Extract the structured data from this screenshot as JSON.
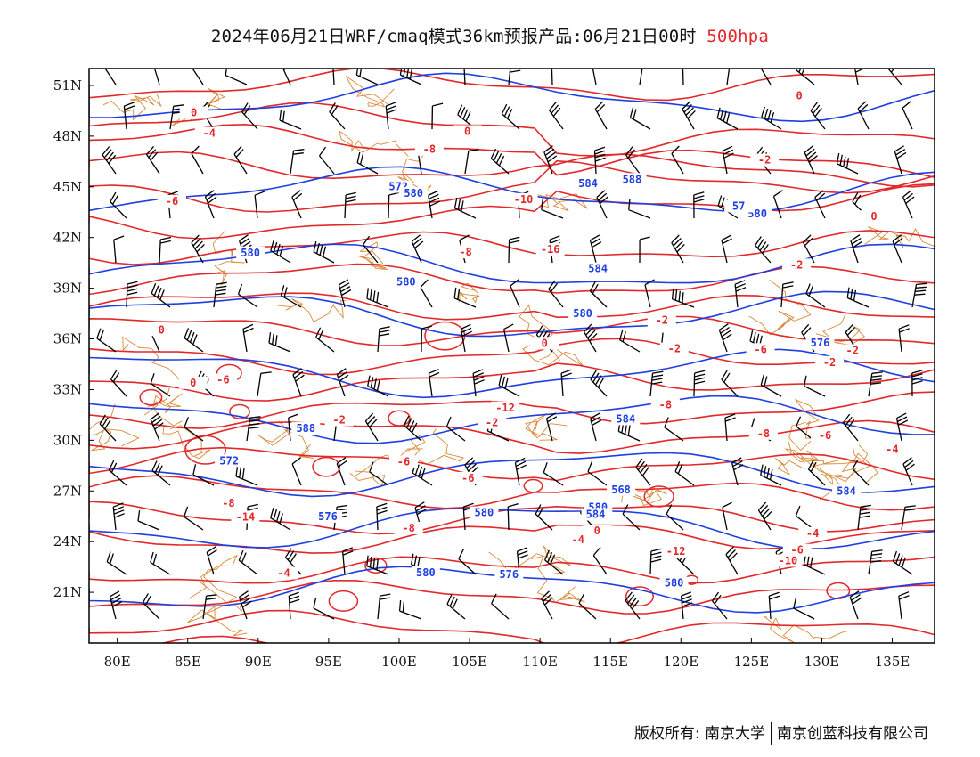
{
  "header": {
    "title": "2024年06月21日WRF/cmaq模式36km预报产品:06月21日00时",
    "level": "500hpa",
    "level_color": "#e2282b"
  },
  "footer": {
    "copyright_label": "版权所有:",
    "org1": "南京大学",
    "org2": "南京创蓝科技有限公司"
  },
  "map": {
    "lon_range": [
      78,
      138
    ],
    "lat_range": [
      18,
      52
    ],
    "x_ticks": [
      "80E",
      "85E",
      "90E",
      "95E",
      "100E",
      "105E",
      "110E",
      "115E",
      "120E",
      "125E",
      "130E",
      "135E"
    ],
    "y_ticks": [
      "51N",
      "48N",
      "45N",
      "42N",
      "39N",
      "36N",
      "33N",
      "30N",
      "27N",
      "24N",
      "21N"
    ],
    "colors": {
      "geopotential": "#1f3fe0",
      "temperature": "#e2282b",
      "borders": "#d98a3a",
      "wind": "#000000"
    },
    "geopotential_labels": [
      "584",
      "576",
      "580",
      "580",
      "572",
      "576",
      "576",
      "580",
      "580",
      "580",
      "580",
      "580",
      "584",
      "580",
      "580",
      "584",
      "584",
      "584",
      "588",
      "588",
      "572",
      "568",
      "57"
    ],
    "temperature_labels": [
      "-16",
      "-14",
      "-12",
      "-12",
      "-10",
      "-8",
      "-8",
      "-8",
      "-8",
      "-8",
      "-6",
      "-6",
      "-6",
      "-6",
      "-6",
      "-6",
      "-6",
      "-4",
      "-4",
      "-4",
      "-4",
      "-4",
      "-2",
      "-2",
      "-2",
      "-2",
      "-2",
      "-2",
      "-2",
      "-2",
      "0",
      "0",
      "0",
      "0",
      "0",
      "0",
      "0",
      "0",
      "-10",
      "-8"
    ]
  }
}
